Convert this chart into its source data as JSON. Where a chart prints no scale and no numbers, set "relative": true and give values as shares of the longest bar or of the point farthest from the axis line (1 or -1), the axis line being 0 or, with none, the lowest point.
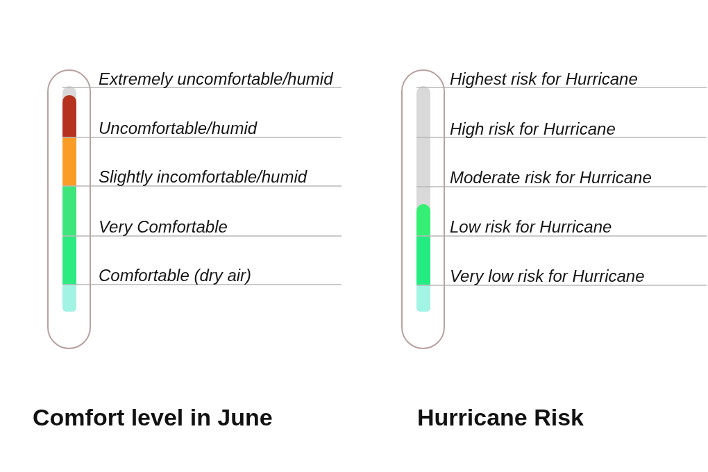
{
  "chart_data": [
    {
      "type": "bar",
      "title": "Comfort level in June",
      "categories": [
        null
      ],
      "stacked": true,
      "relative": true,
      "ref_lines": [
        {
          "axis": "y",
          "value": 0.125,
          "label": "Comfortable (dry air)"
        },
        {
          "axis": "y",
          "value": 0.35,
          "label": "Very Comfortable"
        },
        {
          "axis": "y",
          "value": 0.58,
          "label": "Slightly incomfortable/humid"
        },
        {
          "axis": "y",
          "value": 0.805,
          "label": "Uncomfortable/humid"
        },
        {
          "axis": "y",
          "value": 1.035,
          "label": "Extremely uncomfortable/humid"
        }
      ],
      "series": [
        {
          "color": "#a2f3e3",
          "values": [
            0.125
          ]
        },
        {
          "color": "#2deb80",
          "values": [
            0.225
          ]
        },
        {
          "color": "#3de67a",
          "values": [
            0.23
          ]
        },
        {
          "color": "#fa9d26",
          "values": [
            0.225
          ]
        },
        {
          "color": "#b5321e",
          "values": [
            0.195
          ]
        }
      ]
    },
    {
      "type": "bar",
      "title": "Hurricane Risk",
      "categories": [
        null
      ],
      "stacked": true,
      "relative": true,
      "ref_lines": [
        {
          "axis": "y",
          "value": 0.25,
          "label": "Very low risk for Hurricane"
        },
        {
          "axis": "y",
          "value": 0.705,
          "label": "Low risk for Hurricane"
        },
        {
          "axis": "y",
          "value": 1.165,
          "label": "Moderate risk for Hurricane"
        },
        {
          "axis": "y",
          "value": 1.62,
          "label": "High risk for Hurricane"
        },
        {
          "axis": "y",
          "value": 2.085,
          "label": "Highest risk for Hurricane"
        }
      ],
      "series": [
        {
          "color": "#a2f4e4",
          "values": [
            0.25
          ]
        },
        {
          "color": "#22ec82",
          "values": [
            0.455
          ]
        },
        {
          "color": "#35ef74",
          "values": [
            0.295
          ]
        }
      ]
    }
  ]
}
